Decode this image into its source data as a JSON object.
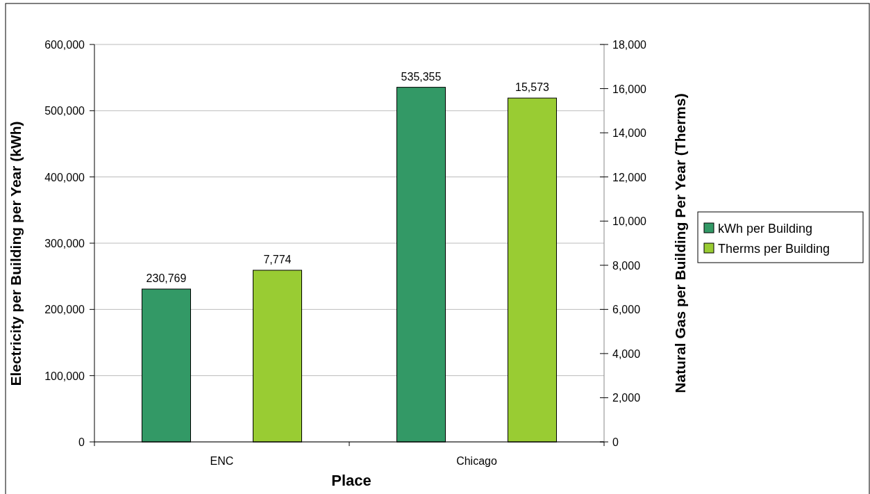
{
  "chart_data": {
    "type": "bar",
    "xlabel": "Place",
    "ylabel": "Electricity per Building per Year (kWh)",
    "y2label": "Natural Gas per Building Per Year (Therms)",
    "categories": [
      "ENC",
      "Chicago"
    ],
    "series": [
      {
        "name": "kWh per Building",
        "color": "#339966",
        "values": [
          230769,
          535355
        ],
        "value_labels": [
          "230,769",
          "535,355"
        ]
      },
      {
        "name": "Therms per Building",
        "color": "#99cc33",
        "values": [
          7774,
          15573
        ],
        "value_labels": [
          "7,774",
          "15,573"
        ],
        "axis": "y2"
      }
    ],
    "ylim": [
      0,
      600000
    ],
    "yticks": [
      0,
      {
        "value": 100000,
        "label": "100,000"
      },
      {
        "value": 200000,
        "label": "200,000"
      },
      {
        "value": 300000,
        "label": "300,000"
      },
      {
        "value": 400000,
        "label": "400,000"
      },
      {
        "value": 500000,
        "label": "500,000"
      },
      {
        "value": 600000,
        "label": "600,000"
      }
    ],
    "y2lim": [
      0,
      18000
    ],
    "y2ticks": [
      0,
      {
        "value": 2000,
        "label": "2,000"
      },
      {
        "value": 4000,
        "label": "4,000"
      },
      {
        "value": 6000,
        "label": "6,000"
      },
      {
        "value": 8000,
        "label": "8,000"
      },
      {
        "value": 10000,
        "label": "10,000"
      },
      {
        "value": 12000,
        "label": "12,000"
      },
      {
        "value": 14000,
        "label": "14,000"
      },
      {
        "value": 16000,
        "label": "16,000"
      },
      {
        "value": 18000,
        "label": "18,000"
      }
    ],
    "grid": "y",
    "legend": "right"
  }
}
